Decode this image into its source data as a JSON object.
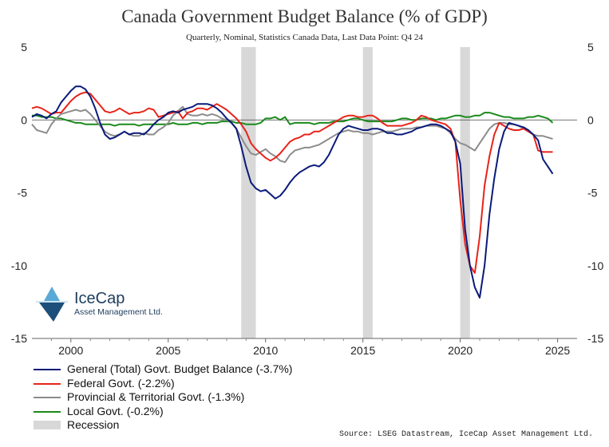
{
  "chart_data": {
    "type": "line",
    "title": "Canada Government Budget Balance (% of GDP)",
    "subtitle": "Quarterly, Nominal, Statistics Canada Data, Last Data Point: Q4 24",
    "xlabel": "",
    "ylabel": "",
    "xlim": [
      1998.0,
      2026.0
    ],
    "ylim": [
      -15,
      5
    ],
    "x_ticks": [
      2000,
      2005,
      2010,
      2015,
      2020,
      2025
    ],
    "y_ticks": [
      5,
      0,
      -5,
      -10,
      -15
    ],
    "y_tick_labels": [
      "5",
      "0",
      "-5",
      "-10",
      "-15"
    ],
    "grid": false,
    "zero_line": true,
    "recessions": [
      [
        2008.75,
        2009.5
      ],
      [
        2015.0,
        2015.5
      ],
      [
        2020.0,
        2020.5
      ]
    ],
    "series": [
      {
        "name": "General (Total) Govt. Budget Balance",
        "legend_label": "General (Total) Govt. Budget Balance   (-3.7%)",
        "color": "#0a1a7a",
        "x": [
          1998.0,
          1998.25,
          1998.5,
          1998.75,
          1999.0,
          1999.25,
          1999.5,
          1999.75,
          2000.0,
          2000.25,
          2000.5,
          2000.75,
          2001.0,
          2001.25,
          2001.5,
          2001.75,
          2002.0,
          2002.25,
          2002.5,
          2002.75,
          2003.0,
          2003.25,
          2003.5,
          2003.75,
          2004.0,
          2004.25,
          2004.5,
          2004.75,
          2005.0,
          2005.25,
          2005.5,
          2005.75,
          2006.0,
          2006.25,
          2006.5,
          2006.75,
          2007.0,
          2007.25,
          2007.5,
          2007.75,
          2008.0,
          2008.25,
          2008.5,
          2008.75,
          2009.0,
          2009.25,
          2009.5,
          2009.75,
          2010.0,
          2010.25,
          2010.5,
          2010.75,
          2011.0,
          2011.25,
          2011.5,
          2011.75,
          2012.0,
          2012.25,
          2012.5,
          2012.75,
          2013.0,
          2013.25,
          2013.5,
          2013.75,
          2014.0,
          2014.25,
          2014.5,
          2014.75,
          2015.0,
          2015.25,
          2015.5,
          2015.75,
          2016.0,
          2016.25,
          2016.5,
          2016.75,
          2017.0,
          2017.25,
          2017.5,
          2017.75,
          2018.0,
          2018.25,
          2018.5,
          2018.75,
          2019.0,
          2019.25,
          2019.5,
          2019.75,
          2020.0,
          2020.25,
          2020.5,
          2020.75,
          2021.0,
          2021.25,
          2021.5,
          2021.75,
          2022.0,
          2022.25,
          2022.5,
          2022.75,
          2023.0,
          2023.25,
          2023.5,
          2023.75,
          2024.0,
          2024.25,
          2024.5,
          2024.75
        ],
        "values": [
          0.2,
          0.4,
          0.3,
          0.1,
          0.4,
          0.6,
          1.2,
          1.6,
          2.0,
          2.3,
          2.3,
          2.1,
          1.6,
          0.8,
          -0.2,
          -1.0,
          -1.3,
          -1.2,
          -1.0,
          -0.8,
          -1.0,
          -0.9,
          -0.9,
          -1.0,
          -0.7,
          -0.3,
          0.0,
          0.2,
          0.5,
          0.6,
          0.5,
          0.7,
          0.8,
          0.9,
          1.1,
          1.1,
          1.1,
          1.0,
          0.8,
          0.5,
          0.1,
          -0.2,
          -0.6,
          -1.8,
          -3.2,
          -4.3,
          -4.7,
          -4.9,
          -4.8,
          -5.1,
          -5.4,
          -5.2,
          -4.8,
          -4.3,
          -3.9,
          -3.6,
          -3.4,
          -3.2,
          -3.1,
          -3.2,
          -2.9,
          -2.4,
          -1.7,
          -1.0,
          -0.6,
          -0.4,
          -0.5,
          -0.6,
          -0.7,
          -0.7,
          -0.6,
          -0.6,
          -0.7,
          -0.9,
          -0.9,
          -1.0,
          -1.0,
          -0.9,
          -0.8,
          -0.6,
          -0.5,
          -0.4,
          -0.3,
          -0.3,
          -0.4,
          -0.6,
          -0.8,
          -1.5,
          -3.0,
          -7.5,
          -10.0,
          -11.5,
          -12.2,
          -10.0,
          -6.5,
          -4.0,
          -2.0,
          -0.8,
          -0.2,
          -0.3,
          -0.4,
          -0.5,
          -0.7,
          -1.0,
          -1.4,
          -2.7,
          -3.2,
          -3.7
        ]
      },
      {
        "name": "Federal Govt.",
        "legend_label": "Federal Govt. (-2.2%)",
        "color": "#e8231a",
        "x": [
          1998.0,
          1998.25,
          1998.5,
          1998.75,
          1999.0,
          1999.25,
          1999.5,
          1999.75,
          2000.0,
          2000.25,
          2000.5,
          2000.75,
          2001.0,
          2001.25,
          2001.5,
          2001.75,
          2002.0,
          2002.25,
          2002.5,
          2002.75,
          2003.0,
          2003.25,
          2003.5,
          2003.75,
          2004.0,
          2004.25,
          2004.5,
          2004.75,
          2005.0,
          2005.25,
          2005.5,
          2005.75,
          2006.0,
          2006.25,
          2006.5,
          2006.75,
          2007.0,
          2007.25,
          2007.5,
          2007.75,
          2008.0,
          2008.25,
          2008.5,
          2008.75,
          2009.0,
          2009.25,
          2009.5,
          2009.75,
          2010.0,
          2010.25,
          2010.5,
          2010.75,
          2011.0,
          2011.25,
          2011.5,
          2011.75,
          2012.0,
          2012.25,
          2012.5,
          2012.75,
          2013.0,
          2013.25,
          2013.5,
          2013.75,
          2014.0,
          2014.25,
          2014.5,
          2014.75,
          2015.0,
          2015.25,
          2015.5,
          2015.75,
          2016.0,
          2016.25,
          2016.5,
          2016.75,
          2017.0,
          2017.25,
          2017.5,
          2017.75,
          2018.0,
          2018.25,
          2018.5,
          2018.75,
          2019.0,
          2019.25,
          2019.5,
          2019.75,
          2020.0,
          2020.25,
          2020.5,
          2020.75,
          2021.0,
          2021.25,
          2021.5,
          2021.75,
          2022.0,
          2022.25,
          2022.5,
          2022.75,
          2023.0,
          2023.25,
          2023.5,
          2023.75,
          2024.0,
          2024.25,
          2024.5,
          2024.75
        ],
        "values": [
          0.8,
          0.9,
          0.8,
          0.6,
          0.4,
          0.5,
          0.5,
          0.9,
          1.3,
          1.6,
          1.8,
          1.9,
          1.8,
          1.4,
          1.0,
          0.6,
          0.5,
          0.6,
          0.8,
          0.6,
          0.4,
          0.5,
          0.5,
          0.6,
          0.8,
          0.7,
          0.2,
          0.3,
          0.4,
          0.5,
          0.6,
          0.1,
          0.5,
          0.6,
          0.8,
          0.8,
          0.7,
          0.9,
          1.1,
          0.9,
          0.7,
          0.4,
          0.1,
          -0.3,
          -0.8,
          -1.6,
          -2.0,
          -2.3,
          -2.6,
          -2.8,
          -2.6,
          -2.3,
          -1.9,
          -1.5,
          -1.3,
          -1.2,
          -1.0,
          -1.0,
          -0.8,
          -0.8,
          -0.6,
          -0.4,
          -0.2,
          0.0,
          0.2,
          0.3,
          0.3,
          0.2,
          0.2,
          0.3,
          0.3,
          0.1,
          -0.2,
          -0.4,
          -0.4,
          -0.4,
          -0.4,
          -0.3,
          -0.2,
          0.0,
          0.3,
          0.2,
          0.0,
          -0.1,
          -0.2,
          -0.3,
          -0.6,
          -1.5,
          -5.5,
          -8.5,
          -10.0,
          -10.5,
          -8.0,
          -4.5,
          -2.5,
          -1.0,
          -0.2,
          -0.4,
          -0.6,
          -0.7,
          -0.7,
          -0.6,
          -0.8,
          -1.0,
          -2.1,
          -2.2,
          -2.2,
          -2.2
        ]
      },
      {
        "name": "Provincial & Territorial Govt.",
        "legend_label": "Provincial & Territorial Govt. (-1.3%)",
        "color": "#8c8c8c",
        "x": [
          1998.0,
          1998.25,
          1998.5,
          1998.75,
          1999.0,
          1999.25,
          1999.5,
          1999.75,
          2000.0,
          2000.25,
          2000.5,
          2000.75,
          2001.0,
          2001.25,
          2001.5,
          2001.75,
          2002.0,
          2002.25,
          2002.5,
          2002.75,
          2003.0,
          2003.25,
          2003.5,
          2003.75,
          2004.0,
          2004.25,
          2004.5,
          2004.75,
          2005.0,
          2005.25,
          2005.5,
          2005.75,
          2006.0,
          2006.25,
          2006.5,
          2006.75,
          2007.0,
          2007.25,
          2007.5,
          2007.75,
          2008.0,
          2008.25,
          2008.5,
          2008.75,
          2009.0,
          2009.25,
          2009.5,
          2009.75,
          2010.0,
          2010.25,
          2010.5,
          2010.75,
          2011.0,
          2011.25,
          2011.5,
          2011.75,
          2012.0,
          2012.25,
          2012.5,
          2012.75,
          2013.0,
          2013.25,
          2013.5,
          2013.75,
          2014.0,
          2014.25,
          2014.5,
          2014.75,
          2015.0,
          2015.25,
          2015.5,
          2015.75,
          2016.0,
          2016.25,
          2016.5,
          2016.75,
          2017.0,
          2017.25,
          2017.5,
          2017.75,
          2018.0,
          2018.25,
          2018.5,
          2018.75,
          2019.0,
          2019.25,
          2019.5,
          2019.75,
          2020.0,
          2020.25,
          2020.5,
          2020.75,
          2021.0,
          2021.25,
          2021.5,
          2021.75,
          2022.0,
          2022.25,
          2022.5,
          2022.75,
          2023.0,
          2023.25,
          2023.5,
          2023.75,
          2024.0,
          2024.25,
          2024.5,
          2024.75
        ],
        "values": [
          -0.3,
          -0.7,
          -0.8,
          -0.9,
          -0.3,
          0.1,
          0.4,
          0.5,
          0.6,
          0.7,
          0.6,
          0.7,
          0.4,
          0.0,
          -0.4,
          -0.8,
          -1.0,
          -1.1,
          -1.0,
          -0.8,
          -1.0,
          -1.1,
          -1.1,
          -0.9,
          -1.0,
          -1.0,
          -0.7,
          -0.5,
          -0.2,
          0.3,
          0.6,
          0.9,
          0.4,
          0.3,
          0.3,
          0.4,
          0.3,
          0.4,
          0.3,
          0.1,
          0.0,
          -0.2,
          -0.6,
          -1.2,
          -1.8,
          -2.3,
          -2.4,
          -2.2,
          -2.0,
          -2.3,
          -2.5,
          -2.8,
          -2.9,
          -2.4,
          -2.1,
          -2.0,
          -1.9,
          -1.9,
          -1.8,
          -1.7,
          -1.5,
          -1.3,
          -1.1,
          -0.9,
          -0.8,
          -0.7,
          -0.8,
          -0.8,
          -0.9,
          -0.9,
          -1.0,
          -0.9,
          -0.8,
          -0.8,
          -0.8,
          -0.7,
          -0.6,
          -0.6,
          -0.6,
          -0.5,
          -0.5,
          -0.4,
          -0.4,
          -0.4,
          -0.5,
          -0.6,
          -0.9,
          -1.3,
          -1.6,
          -1.7,
          -1.9,
          -2.1,
          -1.6,
          -1.1,
          -0.6,
          -0.3,
          -0.2,
          -0.2,
          -0.3,
          -0.3,
          -0.4,
          -0.6,
          -0.8,
          -1.0,
          -1.1,
          -1.1,
          -1.2,
          -1.3
        ]
      },
      {
        "name": "Local Govt.",
        "legend_label": "Local Govt. (-0.2%)",
        "color": "#1a8a1a",
        "x": [
          1998.0,
          1998.25,
          1998.5,
          1998.75,
          1999.0,
          1999.25,
          1999.5,
          1999.75,
          2000.0,
          2000.25,
          2000.5,
          2000.75,
          2001.0,
          2001.25,
          2001.5,
          2001.75,
          2002.0,
          2002.25,
          2002.5,
          2002.75,
          2003.0,
          2003.25,
          2003.5,
          2003.75,
          2004.0,
          2004.25,
          2004.5,
          2004.75,
          2005.0,
          2005.25,
          2005.5,
          2005.75,
          2006.0,
          2006.25,
          2006.5,
          2006.75,
          2007.0,
          2007.25,
          2007.5,
          2007.75,
          2008.0,
          2008.25,
          2008.5,
          2008.75,
          2009.0,
          2009.25,
          2009.5,
          2009.75,
          2010.0,
          2010.25,
          2010.5,
          2010.75,
          2011.0,
          2011.25,
          2011.5,
          2011.75,
          2012.0,
          2012.25,
          2012.5,
          2012.75,
          2013.0,
          2013.25,
          2013.5,
          2013.75,
          2014.0,
          2014.25,
          2014.5,
          2014.75,
          2015.0,
          2015.25,
          2015.5,
          2015.75,
          2016.0,
          2016.25,
          2016.5,
          2016.75,
          2017.0,
          2017.25,
          2017.5,
          2017.75,
          2018.0,
          2018.25,
          2018.5,
          2018.75,
          2019.0,
          2019.25,
          2019.5,
          2019.75,
          2020.0,
          2020.25,
          2020.5,
          2020.75,
          2021.0,
          2021.25,
          2021.5,
          2021.75,
          2022.0,
          2022.25,
          2022.5,
          2022.75,
          2023.0,
          2023.25,
          2023.5,
          2023.75,
          2024.0,
          2024.25,
          2024.5,
          2024.75
        ],
        "values": [
          0.3,
          0.3,
          0.2,
          0.2,
          0.2,
          0.1,
          0.1,
          0.0,
          -0.1,
          -0.2,
          -0.2,
          -0.3,
          -0.3,
          -0.3,
          -0.3,
          -0.3,
          -0.3,
          -0.4,
          -0.3,
          -0.3,
          -0.3,
          -0.3,
          -0.4,
          -0.3,
          -0.3,
          -0.3,
          -0.3,
          -0.3,
          -0.3,
          -0.2,
          -0.3,
          -0.3,
          -0.3,
          -0.2,
          -0.2,
          -0.3,
          -0.2,
          -0.2,
          -0.2,
          -0.1,
          -0.1,
          -0.1,
          -0.2,
          -0.2,
          -0.3,
          -0.3,
          -0.3,
          -0.2,
          0.1,
          0.1,
          0.2,
          0.0,
          0.2,
          -0.3,
          -0.2,
          -0.2,
          -0.2,
          -0.2,
          -0.3,
          -0.2,
          -0.2,
          -0.2,
          -0.1,
          -0.1,
          -0.1,
          0.0,
          0.1,
          0.1,
          0.0,
          -0.1,
          -0.1,
          -0.1,
          -0.1,
          -0.1,
          -0.1,
          0.0,
          0.1,
          0.1,
          0.0,
          0.0,
          0.1,
          0.1,
          0.1,
          0.0,
          0.1,
          0.1,
          0.2,
          0.3,
          0.3,
          0.2,
          0.2,
          0.3,
          0.3,
          0.5,
          0.5,
          0.4,
          0.3,
          0.2,
          0.2,
          0.1,
          0.1,
          0.1,
          0.2,
          0.2,
          0.3,
          0.2,
          0.1,
          -0.2
        ]
      }
    ],
    "recession_legend_label": "Recession",
    "recession_color": "#d8d8d8"
  },
  "logo": {
    "name": "IceCap",
    "tagline": "Asset Management Ltd."
  },
  "source": "Source: LSEG Datastream, IceCap Asset Management Ltd."
}
